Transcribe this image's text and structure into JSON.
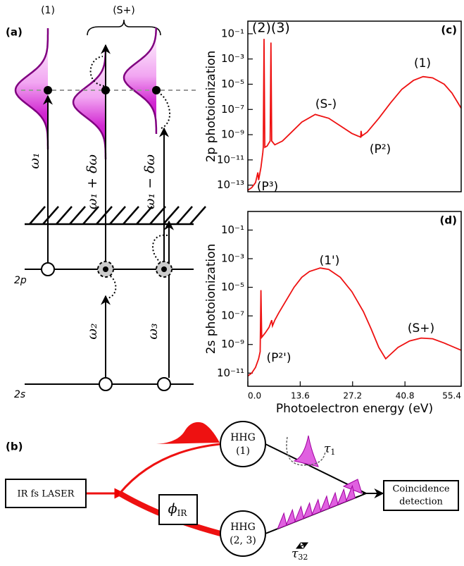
{
  "chart_data": [
    {
      "type": "line",
      "panel_label": "(c)",
      "ylabel": "2p photoionization",
      "log_y": true,
      "color": "#ee1111",
      "x": [
        0,
        1,
        2,
        2.6,
        2.8,
        3.4,
        3.9,
        4.0,
        4.2,
        4.4,
        5.0,
        5.8,
        6.0,
        6.2,
        7,
        9,
        11,
        14,
        17.5,
        21,
        24,
        27,
        29.3,
        29.4,
        29.6,
        31,
        34,
        37,
        40,
        43,
        45.5,
        48,
        51,
        53,
        55.4
      ],
      "values": [
        3.98e-14,
        6.31e-14,
        1.58e-13,
        1e-12,
        2.51e-13,
        2.51e-12,
        3.98e-11,
        1e-10,
        0.0398,
        1e-10,
        1.26e-10,
        3.16e-10,
        0.02,
        3.16e-10,
        1.58e-10,
        3.16e-10,
        1.26e-09,
        1e-08,
        3.98e-08,
        2e-08,
        5.01e-09,
        1.26e-09,
        6.31e-10,
        2e-09,
        7.94e-10,
        1.58e-09,
        2e-08,
        3.16e-07,
        3.98e-06,
        2e-05,
        3.98e-05,
        3.16e-05,
        1e-05,
        2e-06,
        1.26e-07
      ],
      "xlim": [
        0,
        55.4
      ],
      "ylim": [
        3e-14,
        1
      ],
      "yticks": [
        {
          "value": 0.1,
          "label": "10⁻¹"
        },
        {
          "value": 0.001,
          "label": "10⁻³"
        },
        {
          "value": 1e-05,
          "label": "10⁻⁵"
        },
        {
          "value": 1e-07,
          "label": "10⁻⁷"
        },
        {
          "value": 1e-09,
          "label": "10⁻⁹"
        },
        {
          "value": 1e-11,
          "label": "10⁻¹¹"
        },
        {
          "value": 1e-13,
          "label": "10⁻¹³"
        }
      ],
      "annotations": [
        "(2)(3)",
        "(1)",
        "(S-)",
        "(P²)",
        "(P³)"
      ]
    },
    {
      "type": "line",
      "panel_label": "(d)",
      "ylabel": "2s photoionization",
      "xlabel": "Photoelectron energy (eV)",
      "log_y": true,
      "color": "#ee1111",
      "x": [
        0,
        1,
        2,
        2.8,
        3.2,
        3.4,
        3.6,
        4.5,
        5.5,
        6.2,
        6.4,
        7,
        8,
        10,
        12,
        14,
        16,
        18.8,
        21,
        24,
        27,
        30,
        32,
        34,
        35.8,
        37,
        39,
        42,
        45,
        48,
        51,
        55.4
      ],
      "values": [
        6.31e-12,
        1e-11,
        2.51e-11,
        1e-10,
        3.16e-10,
        6.31e-06,
        3.16e-09,
        6.31e-09,
        1.58e-08,
        5.01e-08,
        2e-08,
        5.01e-08,
        1.58e-07,
        1.26e-06,
        1e-05,
        5.01e-05,
        0.000126,
        0.000224,
        0.000178,
        5.01e-05,
        5.01e-06,
        2e-07,
        1.26e-08,
        6.31e-10,
        1e-10,
        2e-10,
        6.31e-10,
        1.78e-09,
        2.82e-09,
        2.51e-09,
        1.26e-09,
        3.98e-10
      ],
      "xlim": [
        0,
        55.4
      ],
      "ylim": [
        1.2e-12,
        2
      ],
      "xticks": [
        {
          "value": 0,
          "label": "0.0"
        },
        13.6,
        27.2,
        40.8,
        55.4
      ],
      "yticks": [
        {
          "value": 0.1,
          "label": "10⁻¹"
        },
        {
          "value": 0.001,
          "label": "10⁻³"
        },
        {
          "value": 1e-05,
          "label": "10⁻⁵"
        },
        {
          "value": 1e-07,
          "label": "10⁻⁷"
        },
        {
          "value": 1e-09,
          "label": "10⁻⁹"
        },
        {
          "value": 1e-11,
          "label": "10⁻¹¹"
        }
      ],
      "annotations": [
        "(1')",
        "(S+)",
        "(P²')"
      ]
    }
  ],
  "diagram_a": {
    "label": "(a)",
    "top_labels": [
      "(1)",
      "(S+)"
    ],
    "transitions": [
      "ω₁",
      "ω₁ + δω",
      "ω₁ − δω",
      "ω₂",
      "ω₃"
    ],
    "levels": [
      "2p",
      "2s"
    ]
  },
  "diagram_b": {
    "label": "(b)",
    "laser": "IR fs LASER",
    "hhg_1": {
      "name": "HHG",
      "tag": "(1)"
    },
    "hhg_23": {
      "name": "HHG",
      "tag": "(2, 3)"
    },
    "phase": {
      "symbol": "ϕ",
      "subscript": "IR"
    },
    "delay_1": {
      "symbol": "τ",
      "subscript": "1"
    },
    "delay_32": {
      "symbol": "τ",
      "subscript": "32"
    },
    "detector": [
      "Coincidence",
      "detection"
    ]
  }
}
